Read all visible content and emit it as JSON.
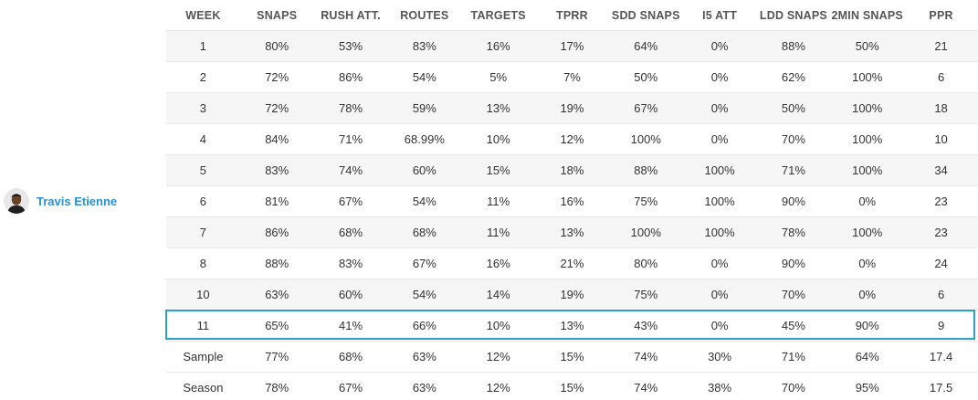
{
  "player": {
    "name": "Travis Etienne",
    "avatar_icon": "player-headshot-icon"
  },
  "table": {
    "columns": [
      "WEEK",
      "SNAPS",
      "RUSH ATT.",
      "ROUTES",
      "TARGETS",
      "TPRR",
      "SDD SNAPS",
      "I5 ATT",
      "LDD SNAPS",
      "2MIN SNAPS",
      "PPR"
    ],
    "rows": [
      [
        "1",
        "80%",
        "53%",
        "83%",
        "16%",
        "17%",
        "64%",
        "0%",
        "88%",
        "50%",
        "21"
      ],
      [
        "2",
        "72%",
        "86%",
        "54%",
        "5%",
        "7%",
        "50%",
        "0%",
        "62%",
        "100%",
        "6"
      ],
      [
        "3",
        "72%",
        "78%",
        "59%",
        "13%",
        "19%",
        "67%",
        "0%",
        "50%",
        "100%",
        "18"
      ],
      [
        "4",
        "84%",
        "71%",
        "68.99%",
        "10%",
        "12%",
        "100%",
        "0%",
        "70%",
        "100%",
        "10"
      ],
      [
        "5",
        "83%",
        "74%",
        "60%",
        "15%",
        "18%",
        "88%",
        "100%",
        "71%",
        "100%",
        "34"
      ],
      [
        "6",
        "81%",
        "67%",
        "54%",
        "11%",
        "16%",
        "75%",
        "100%",
        "90%",
        "0%",
        "23"
      ],
      [
        "7",
        "86%",
        "68%",
        "68%",
        "11%",
        "13%",
        "100%",
        "100%",
        "78%",
        "100%",
        "23"
      ],
      [
        "8",
        "88%",
        "83%",
        "67%",
        "16%",
        "21%",
        "80%",
        "0%",
        "90%",
        "0%",
        "24"
      ],
      [
        "10",
        "63%",
        "60%",
        "54%",
        "14%",
        "19%",
        "75%",
        "0%",
        "70%",
        "0%",
        "6"
      ],
      [
        "11",
        "65%",
        "41%",
        "66%",
        "10%",
        "13%",
        "43%",
        "0%",
        "45%",
        "90%",
        "9"
      ]
    ],
    "summary_rows": [
      [
        "Sample",
        "77%",
        "68%",
        "63%",
        "12%",
        "15%",
        "74%",
        "30%",
        "71%",
        "64%",
        "17.4"
      ],
      [
        "Season",
        "78%",
        "67%",
        "63%",
        "12%",
        "15%",
        "74%",
        "38%",
        "70%",
        "95%",
        "17.5"
      ]
    ],
    "highlighted_week": "11"
  },
  "colors": {
    "player_link": "#2a8fd8",
    "highlight_border": "#29a3cc",
    "zebra_row": "#f6f6f6"
  }
}
